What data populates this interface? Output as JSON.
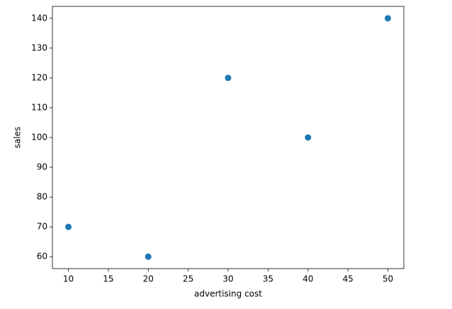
{
  "chart_data": {
    "type": "scatter",
    "x_label": "advertising cost",
    "y_label": "sales",
    "x": [
      10,
      20,
      30,
      40,
      50
    ],
    "values": [
      70,
      60,
      120,
      100,
      140
    ],
    "color": "#1f77b4",
    "xlim": [
      8,
      52
    ],
    "xticks": [
      10,
      15,
      20,
      25,
      30,
      35,
      40,
      45,
      50
    ],
    "ylim": [
      56,
      144
    ],
    "yticks": [
      60,
      70,
      80,
      90,
      100,
      110,
      120,
      130,
      140
    ],
    "grid": false
  }
}
